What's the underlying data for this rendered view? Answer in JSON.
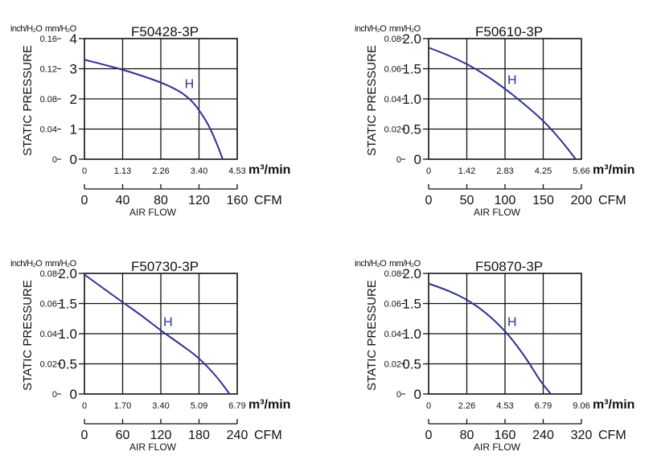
{
  "chart_data": [
    {
      "type": "line",
      "title": "F50428-3P",
      "ylabel": "STATIC PRESSURE",
      "xlabel": "AIR FLOW",
      "y_unit_primary": "mm/H₂O",
      "y_unit_secondary": "inch/H₂O",
      "x_unit_primary": "m³/min",
      "x_unit_secondary": "CFM",
      "ylim": [
        0,
        4
      ],
      "yticks_mm": [
        "0",
        "1",
        "2",
        "3",
        "4"
      ],
      "yticks_inch": [
        "0",
        "0.04",
        "0.08",
        "0.12",
        "0.16"
      ],
      "xlim": [
        0,
        4.53
      ],
      "xticks_m3": [
        "0",
        "1.13",
        "2.26",
        "3.40",
        "4.53"
      ],
      "xticks_cfm": [
        "0",
        "40",
        "80",
        "120",
        "160"
      ],
      "grid": true,
      "series": [
        {
          "name": "H",
          "color": "#2e3192",
          "x": [
            0,
            0.6,
            1.13,
            1.7,
            2.26,
            2.6,
            2.9,
            3.2,
            3.45,
            3.7,
            3.95,
            4.1
          ],
          "y": [
            3.3,
            3.13,
            2.97,
            2.77,
            2.55,
            2.38,
            2.2,
            1.92,
            1.55,
            1.1,
            0.45,
            0
          ]
        }
      ]
    },
    {
      "type": "line",
      "title": "F50610-3P",
      "ylabel": "STATIC PRESSURE",
      "xlabel": "AIR FLOW",
      "y_unit_primary": "mm/H₂O",
      "y_unit_secondary": "inch/H₂O",
      "x_unit_primary": "m³/min",
      "x_unit_secondary": "CFM",
      "ylim": [
        0,
        2.0
      ],
      "yticks_mm": [
        "0",
        "0.5",
        "1.0",
        "1.5",
        "2.0"
      ],
      "yticks_inch": [
        "0",
        "0.02",
        "0.04",
        "0.06",
        "0.08"
      ],
      "xlim": [
        0,
        5.66
      ],
      "xticks_m3": [
        "0",
        "1.42",
        "2.83",
        "4.25",
        "5.66"
      ],
      "xticks_cfm": [
        "0",
        "50",
        "100",
        "150",
        "200"
      ],
      "grid": true,
      "series": [
        {
          "name": "H",
          "color": "#2e3192",
          "x": [
            0,
            0.7,
            1.42,
            2.1,
            2.83,
            3.5,
            4.25,
            4.9,
            5.45
          ],
          "y": [
            1.85,
            1.73,
            1.58,
            1.4,
            1.17,
            0.93,
            0.64,
            0.32,
            0
          ]
        }
      ]
    },
    {
      "type": "line",
      "title": "F50730-3P",
      "ylabel": "STATIC PRESSURE",
      "xlabel": "AIR FLOW",
      "y_unit_primary": "mm/H₂O",
      "y_unit_secondary": "inch/H₂O",
      "x_unit_primary": "m³/min",
      "x_unit_secondary": "CFM",
      "ylim": [
        0,
        2.0
      ],
      "yticks_mm": [
        "0",
        "0.5",
        "1.0",
        "1.5",
        "2.0"
      ],
      "yticks_inch": [
        "0",
        "0.02",
        "0.04",
        "0.06",
        "0.08"
      ],
      "xlim": [
        0,
        6.79
      ],
      "xticks_m3": [
        "0",
        "1.70",
        "3.40",
        "5.09",
        "6.79"
      ],
      "xticks_cfm": [
        "0",
        "60",
        "120",
        "180",
        "240"
      ],
      "grid": true,
      "series": [
        {
          "name": "H",
          "color": "#2e3192",
          "x": [
            0,
            0.85,
            1.7,
            2.55,
            3.4,
            4.25,
            5.09,
            5.9,
            6.45
          ],
          "y": [
            1.98,
            1.75,
            1.52,
            1.3,
            1.05,
            0.83,
            0.6,
            0.28,
            0
          ]
        }
      ]
    },
    {
      "type": "line",
      "title": "F50870-3P",
      "ylabel": "STATIC PRESSURE",
      "xlabel": "AIR FLOW",
      "y_unit_primary": "mm/H₂O",
      "y_unit_secondary": "inch/H₂O",
      "x_unit_primary": "m³/min",
      "x_unit_secondary": "CFM",
      "ylim": [
        0,
        2.0
      ],
      "yticks_mm": [
        "0",
        "0.5",
        "1.0",
        "1.5",
        "2.0"
      ],
      "yticks_inch": [
        "0",
        "0.02",
        "0.04",
        "0.06",
        "0.08"
      ],
      "xlim": [
        0,
        9.06
      ],
      "xticks_m3": [
        "0",
        "2.26",
        "4.53",
        "6.79",
        "9.06"
      ],
      "xticks_cfm": [
        "0",
        "80",
        "160",
        "240",
        "320"
      ],
      "grid": true,
      "series": [
        {
          "name": "H",
          "color": "#2e3192",
          "x": [
            0,
            1.13,
            2.26,
            3.4,
            4.53,
            5.3,
            6.0,
            6.6,
            7.25
          ],
          "y": [
            1.83,
            1.72,
            1.57,
            1.35,
            1.05,
            0.78,
            0.5,
            0.22,
            0
          ]
        }
      ]
    }
  ]
}
